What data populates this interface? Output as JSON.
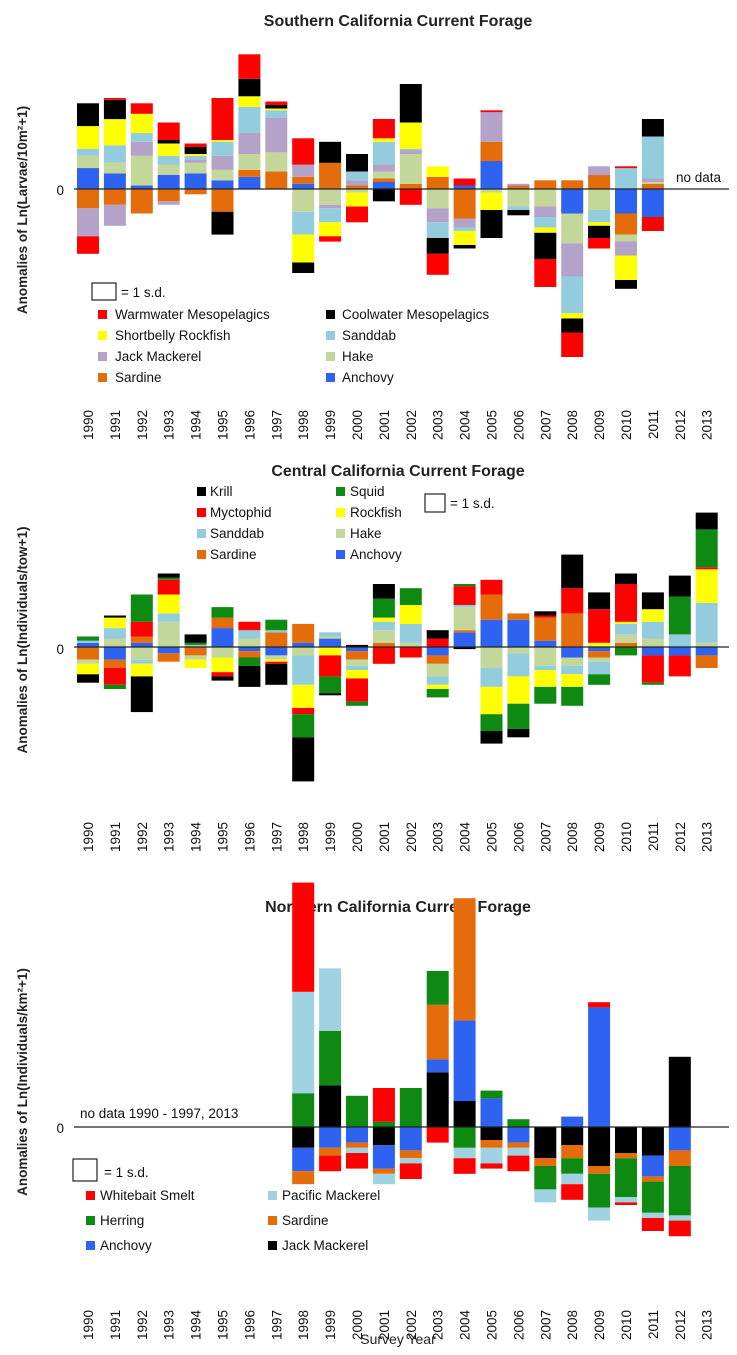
{
  "x_axis_label": "Survey Year",
  "zero_label": "0",
  "scale_label": "= 1 s.d.",
  "colors": {
    "warmwater": "#ff0000",
    "coolwater": "#000000",
    "shortbelly": "#ffff00",
    "sanddab": "#93cddd",
    "jack": "#b4a2c8",
    "hake": "#c4d79b",
    "sardine": "#e46c0a",
    "anchovy": "#2e62f0",
    "krill": "#000000",
    "squid": "#0e8a12",
    "myctophid": "#ff0000",
    "rockfish": "#ffff00",
    "smelt": "#ff0000",
    "pacific": "#9fd3e1",
    "herring": "#0e8a12",
    "jackNorth": "#000000"
  },
  "chart_data": [
    {
      "type": "bar",
      "stacked": true,
      "title": "Southern California Current Forage",
      "ylabel": "Anomalies of Ln(Larvae/10m²+1)",
      "note": "no data",
      "categories": [
        "1990",
        "1991",
        "1992",
        "1993",
        "1994",
        "1995",
        "1996",
        "1997",
        "1998",
        "1999",
        "2000",
        "2001",
        "2002",
        "2003",
        "2004",
        "2005",
        "2006",
        "2007",
        "2008",
        "2009",
        "2010",
        "2011",
        "2012",
        "2013"
      ],
      "legend": [
        {
          "name": "Warmwater Mesopelagics",
          "key": "warmwater"
        },
        {
          "name": "Coolwater Mesopelagics",
          "key": "coolwater"
        },
        {
          "name": "Shortbelly Rockfish",
          "key": "shortbelly"
        },
        {
          "name": "Sanddab",
          "key": "sanddab"
        },
        {
          "name": "Jack Mackerel",
          "key": "jack"
        },
        {
          "name": "Hake",
          "key": "hake"
        },
        {
          "name": "Sardine",
          "key": "sardine"
        },
        {
          "name": "Anchovy",
          "key": "anchovy"
        }
      ],
      "stack_order": [
        "anchovy",
        "sardine",
        "hake",
        "jack",
        "sanddab",
        "shortbelly",
        "coolwater",
        "warmwater"
      ],
      "series": [
        {
          "name": "Anchovy",
          "key": "anchovy",
          "values": [
            0.6,
            0.45,
            0.1,
            0.4,
            0.45,
            0.25,
            0.35,
            0,
            0.15,
            0,
            0,
            0.2,
            0,
            0,
            0.1,
            0.8,
            0,
            0,
            -0.7,
            0,
            -0.7,
            -0.8,
            null,
            null
          ]
        },
        {
          "name": "Sardine",
          "key": "sardine",
          "values": [
            -0.55,
            -0.45,
            -0.7,
            -0.35,
            -0.15,
            -0.65,
            0.2,
            0.5,
            0.2,
            0.75,
            0.1,
            0.1,
            0.15,
            0.35,
            -0.85,
            0.55,
            0.1,
            0.25,
            0.25,
            0.4,
            -0.6,
            0.15,
            null,
            null
          ]
        },
        {
          "name": "Hake",
          "key": "hake",
          "values": [
            0.35,
            0.3,
            0.85,
            0.3,
            0.3,
            0.3,
            0.45,
            0.55,
            -0.65,
            -0.45,
            -0.1,
            0.2,
            0.85,
            -0.55,
            0,
            -0.1,
            -0.5,
            -0.5,
            -0.85,
            -0.6,
            -0.2,
            0.05,
            null,
            null
          ]
        },
        {
          "name": "Jack Mackerel",
          "key": "jack",
          "values": [
            -0.8,
            -0.6,
            0.4,
            -0.1,
            0.1,
            0.4,
            0.6,
            1,
            0.35,
            -0.1,
            0.15,
            0.2,
            0.1,
            -0.4,
            -0.25,
            0.85,
            0.05,
            -0.3,
            -0.95,
            0.25,
            -0.4,
            0.1,
            null,
            null
          ]
        },
        {
          "name": "Sanddab",
          "key": "sanddab",
          "values": [
            0.2,
            0.5,
            0.25,
            0.25,
            0.1,
            0.4,
            0.75,
            0.2,
            -0.65,
            -0.4,
            0.25,
            0.65,
            0.05,
            -0.45,
            -0.1,
            0,
            -0.1,
            -0.3,
            -1.05,
            -0.35,
            0.6,
            1.2,
            null,
            null
          ]
        },
        {
          "name": "Shortbelly Rockfish",
          "key": "shortbelly",
          "values": [
            0.65,
            0.75,
            0.55,
            0.35,
            0.05,
            0.05,
            0.3,
            0.05,
            -0.8,
            -0.4,
            -0.4,
            0.1,
            0.75,
            0.3,
            -0.4,
            -0.5,
            0,
            -0.15,
            -0.15,
            -0.1,
            -0.7,
            0,
            null,
            null
          ]
        },
        {
          "name": "Coolwater Mesopelagics",
          "key": "coolwater",
          "values": [
            0.65,
            0.55,
            0,
            0.1,
            0.2,
            -0.65,
            0.5,
            0.1,
            -0.3,
            0.6,
            0.5,
            -0.35,
            1.1,
            -0.45,
            -0.1,
            -0.8,
            -0.15,
            -0.75,
            -0.4,
            -0.35,
            -0.25,
            0.5,
            null,
            null
          ]
        },
        {
          "name": "Warmwater Mesopelagics",
          "key": "warmwater",
          "values": [
            -0.5,
            0.05,
            0.3,
            0.5,
            0.1,
            1.2,
            0.7,
            0.1,
            0.75,
            -0.15,
            -0.45,
            0.55,
            -0.45,
            -0.6,
            0.2,
            0.05,
            0,
            -0.8,
            -0.7,
            -0.3,
            0.05,
            -0.4,
            null,
            null
          ]
        }
      ]
    },
    {
      "type": "bar",
      "stacked": true,
      "title": "Central California Current Forage",
      "ylabel": "Anomalies of Ln(Individuals/tow+1)",
      "categories": [
        "1990",
        "1991",
        "1992",
        "1993",
        "1994",
        "1995",
        "1996",
        "1997",
        "1998",
        "1999",
        "2000",
        "2001",
        "2002",
        "2003",
        "2004",
        "2005",
        "2006",
        "2007",
        "2008",
        "2009",
        "2010",
        "2011",
        "2012",
        "2013"
      ],
      "legend": [
        {
          "name": "Krill",
          "key": "krill"
        },
        {
          "name": "Squid",
          "key": "squid"
        },
        {
          "name": "Myctophid",
          "key": "myctophid"
        },
        {
          "name": "Rockfish",
          "key": "rockfish"
        },
        {
          "name": "Sanddab",
          "key": "sanddab"
        },
        {
          "name": "Hake",
          "key": "hake"
        },
        {
          "name": "Sardine",
          "key": "sardine"
        },
        {
          "name": "Anchovy",
          "key": "anchovy"
        }
      ],
      "stack_order": [
        "anchovy",
        "sardine",
        "hake",
        "sanddab",
        "rockfish",
        "myctophid",
        "squid",
        "krill"
      ],
      "series": [
        {
          "name": "Anchovy",
          "key": "anchovy",
          "values": [
            0.1,
            -0.3,
            0.1,
            -0.15,
            0,
            0.45,
            -0.1,
            -0.2,
            0.1,
            0.2,
            -0.1,
            0,
            0,
            -0.2,
            0.35,
            0.65,
            0.65,
            0.15,
            -0.25,
            -0.1,
            0,
            -0.2,
            -0.2,
            -0.2
          ]
        },
        {
          "name": "Sardine",
          "key": "sardine",
          "values": [
            -0.3,
            -0.2,
            0.15,
            -0.2,
            -0.2,
            0.25,
            -0.15,
            0.35,
            0.45,
            0,
            -0.2,
            0.1,
            0,
            -0.2,
            0.05,
            0.6,
            0.15,
            0.55,
            0.8,
            -0.15,
            0.1,
            0,
            0,
            -0.3
          ]
        },
        {
          "name": "Hake",
          "key": "hake",
          "values": [
            -0.1,
            0.2,
            -0.3,
            0.6,
            -0.1,
            -0.25,
            0.2,
            -0.1,
            -0.2,
            0.05,
            -0.15,
            0.3,
            0.1,
            -0.3,
            0.55,
            -0.5,
            -0.15,
            -0.45,
            -0.2,
            -0.1,
            0.2,
            0.2,
            0,
            0.1
          ]
        },
        {
          "name": "Sanddab",
          "key": "sanddab",
          "values": [
            0.05,
            0.25,
            -0.1,
            0.2,
            0.05,
            0,
            0.2,
            0.05,
            -0.7,
            0.1,
            -0.1,
            0.2,
            0.45,
            -0.2,
            0.05,
            -0.45,
            -0.55,
            -0.1,
            -0.2,
            -0.3,
            0.25,
            0.4,
            0.3,
            0.95
          ]
        },
        {
          "name": "Rockfish",
          "key": "rockfish",
          "values": [
            -0.25,
            0.25,
            -0.3,
            0.45,
            -0.2,
            -0.35,
            0,
            -0.05,
            -0.55,
            -0.2,
            -0.2,
            0.1,
            0.45,
            -0.1,
            0,
            -0.65,
            -0.65,
            -0.4,
            -0.3,
            0.1,
            0.05,
            0.3,
            0,
            0.8
          ]
        },
        {
          "name": "Myctophid",
          "key": "myctophid",
          "values": [
            0,
            -0.4,
            0.35,
            0.35,
            0,
            -0.1,
            0.2,
            -0.05,
            -0.15,
            -0.5,
            -0.55,
            -0.4,
            -0.25,
            0.2,
            0.45,
            0.35,
            0,
            0.05,
            0.6,
            0.8,
            0.9,
            -0.65,
            -0.5,
            0.05
          ]
        },
        {
          "name": "Squid",
          "key": "squid",
          "values": [
            0.1,
            -0.1,
            0.65,
            0.05,
            0.05,
            0.25,
            -0.2,
            0.25,
            -0.55,
            -0.4,
            -0.1,
            0.45,
            0.4,
            -0.2,
            0.05,
            -0.4,
            -0.6,
            -0.4,
            -0.45,
            -0.25,
            -0.2,
            -0.05,
            0.9,
            0.9
          ]
        },
        {
          "name": "Krill",
          "key": "krill",
          "values": [
            -0.2,
            0.05,
            -0.85,
            0.1,
            0.2,
            -0.1,
            -0.5,
            -0.5,
            -1.05,
            -0.05,
            0.05,
            0.35,
            0,
            0.2,
            -0.05,
            -0.3,
            -0.2,
            0.1,
            0.8,
            0.4,
            0.25,
            0.4,
            0.5,
            0.4
          ]
        }
      ]
    },
    {
      "type": "bar",
      "stacked": true,
      "title": "Northern California Current Forage",
      "ylabel": "Anomalies of Ln(Individuals/km²+1)",
      "note": "no data 1990 - 1997, 2013",
      "categories": [
        "1990",
        "1991",
        "1992",
        "1993",
        "1994",
        "1995",
        "1996",
        "1997",
        "1998",
        "1999",
        "2000",
        "2001",
        "2002",
        "2003",
        "2004",
        "2005",
        "2006",
        "2007",
        "2008",
        "2009",
        "2010",
        "2011",
        "2012",
        "2013"
      ],
      "legend": [
        {
          "name": "Whitebait Smelt",
          "key": "smelt"
        },
        {
          "name": "Pacific Mackerel",
          "key": "pacific"
        },
        {
          "name": "Herring",
          "key": "herring"
        },
        {
          "name": "Sardine",
          "key": "sardine"
        },
        {
          "name": "Anchovy",
          "key": "anchovy"
        },
        {
          "name": "Jack Mackerel",
          "key": "jackNorth"
        }
      ],
      "stack_order": [
        "jackNorth",
        "anchovy",
        "sardine",
        "herring",
        "pacific",
        "smelt"
      ],
      "series": [
        {
          "name": "Jack Mackerel",
          "key": "jackNorth",
          "values": [
            null,
            null,
            null,
            null,
            null,
            null,
            null,
            null,
            -0.4,
            0.8,
            0,
            -0.35,
            0,
            1.05,
            0.5,
            -0.25,
            0,
            -0.6,
            -0.35,
            -0.75,
            -0.5,
            -0.55,
            1.35,
            null
          ]
        },
        {
          "name": "Anchovy",
          "key": "anchovy",
          "values": [
            null,
            null,
            null,
            null,
            null,
            null,
            null,
            null,
            -0.45,
            -0.4,
            -0.3,
            -0.45,
            -0.45,
            0.25,
            1.55,
            0.55,
            -0.3,
            0,
            0.2,
            2.3,
            0,
            -0.4,
            -0.45,
            null
          ]
        },
        {
          "name": "Sardine",
          "key": "sardine",
          "values": [
            null,
            null,
            null,
            null,
            null,
            null,
            null,
            null,
            -0.25,
            -0.15,
            -0.1,
            -0.1,
            -0.15,
            1.05,
            2.35,
            -0.15,
            -0.1,
            -0.15,
            -0.25,
            -0.15,
            -0.1,
            -0.1,
            -0.3,
            null
          ]
        },
        {
          "name": "Herring",
          "key": "herring",
          "values": [
            null,
            null,
            null,
            null,
            null,
            null,
            null,
            null,
            0.65,
            1.05,
            0.6,
            0.1,
            0.75,
            0.65,
            -0.4,
            0.15,
            0.15,
            -0.45,
            -0.3,
            -0.65,
            -0.75,
            -0.6,
            -0.95,
            null
          ]
        },
        {
          "name": "Pacific Mackerel",
          "key": "pacific",
          "values": [
            null,
            null,
            null,
            null,
            null,
            null,
            null,
            null,
            1.95,
            1.2,
            -0.1,
            -0.2,
            -0.1,
            0,
            -0.2,
            -0.3,
            -0.15,
            -0.25,
            -0.2,
            -0.25,
            -0.1,
            -0.1,
            -0.1,
            null
          ]
        },
        {
          "name": "Whitebait Smelt",
          "key": "smelt",
          "values": [
            null,
            null,
            null,
            null,
            null,
            null,
            null,
            null,
            2.1,
            -0.3,
            -0.3,
            0.65,
            -0.3,
            -0.3,
            -0.3,
            -0.1,
            -0.3,
            0,
            -0.3,
            0.1,
            -0.05,
            -0.25,
            -0.3,
            null
          ]
        }
      ]
    }
  ]
}
